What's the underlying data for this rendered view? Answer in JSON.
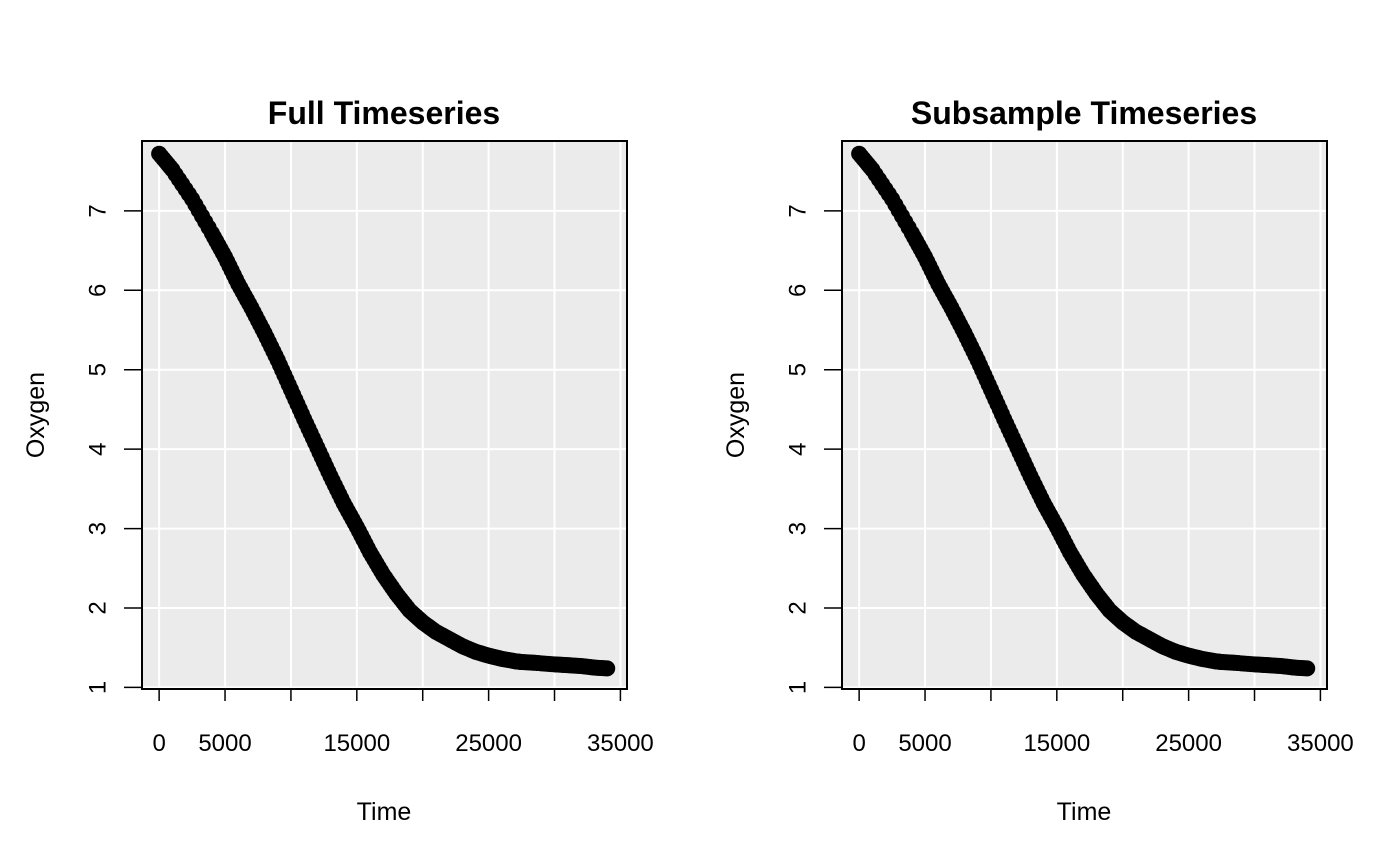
{
  "chart_data": [
    {
      "type": "scatter",
      "title": "Full Timeseries",
      "xlabel": "Time",
      "ylabel": "Oxygen",
      "xlim": [
        -1300,
        35500
      ],
      "ylim": [
        0.98,
        7.88
      ],
      "xticks": [
        0,
        5000,
        10000,
        15000,
        20000,
        25000,
        30000,
        35000
      ],
      "xtick_labels": [
        "0",
        "5000",
        "",
        "15000",
        "",
        "25000",
        "",
        "35000"
      ],
      "yticks": [
        1,
        2,
        3,
        4,
        5,
        6,
        7
      ],
      "ytick_labels": [
        "1",
        "2",
        "3",
        "4",
        "5",
        "6",
        "7"
      ],
      "grid": true,
      "background": "#EBEBEB",
      "grid_color": "#FFFFFF",
      "point_color": "#000000",
      "series": [
        {
          "x": [
            0,
            1000,
            2500,
            4000,
            5000,
            6000,
            7000,
            8000,
            9000,
            10000,
            11000,
            12000,
            13000,
            14000,
            15000,
            16000,
            17000,
            18000,
            19000,
            20000,
            21000,
            22000,
            23000,
            24000,
            25000,
            26000,
            27000,
            27500,
            28500,
            30000,
            31000,
            32000,
            33000,
            34000
          ],
          "y": [
            7.72,
            7.52,
            7.15,
            6.72,
            6.42,
            6.08,
            5.78,
            5.46,
            5.12,
            4.75,
            4.38,
            4.02,
            3.66,
            3.32,
            3.02,
            2.7,
            2.42,
            2.18,
            1.97,
            1.82,
            1.7,
            1.61,
            1.52,
            1.45,
            1.4,
            1.36,
            1.33,
            1.32,
            1.31,
            1.29,
            1.28,
            1.27,
            1.25,
            1.24
          ]
        }
      ]
    },
    {
      "type": "scatter",
      "title": "Subsample Timeseries",
      "xlabel": "Time",
      "ylabel": "Oxygen",
      "xlim": [
        -1300,
        35500
      ],
      "ylim": [
        0.98,
        7.88
      ],
      "xticks": [
        0,
        5000,
        10000,
        15000,
        20000,
        25000,
        30000,
        35000
      ],
      "xtick_labels": [
        "0",
        "5000",
        "",
        "15000",
        "",
        "25000",
        "",
        "35000"
      ],
      "yticks": [
        1,
        2,
        3,
        4,
        5,
        6,
        7
      ],
      "ytick_labels": [
        "1",
        "2",
        "3",
        "4",
        "5",
        "6",
        "7"
      ],
      "grid": true,
      "background": "#EBEBEB",
      "grid_color": "#FFFFFF",
      "point_color": "#000000",
      "series": [
        {
          "x": [
            0,
            1000,
            2500,
            4000,
            5000,
            6000,
            7000,
            8000,
            9000,
            10000,
            11000,
            12000,
            13000,
            14000,
            15000,
            16000,
            17000,
            18000,
            19000,
            20000,
            21000,
            22000,
            23000,
            24000,
            25000,
            26000,
            27000,
            27500,
            28500,
            30000,
            31000,
            32000,
            33000,
            34000
          ],
          "y": [
            7.72,
            7.52,
            7.15,
            6.72,
            6.42,
            6.08,
            5.78,
            5.46,
            5.12,
            4.75,
            4.38,
            4.02,
            3.66,
            3.32,
            3.02,
            2.7,
            2.42,
            2.18,
            1.97,
            1.82,
            1.7,
            1.61,
            1.52,
            1.45,
            1.4,
            1.36,
            1.33,
            1.32,
            1.31,
            1.29,
            1.28,
            1.27,
            1.25,
            1.24
          ]
        }
      ]
    }
  ]
}
